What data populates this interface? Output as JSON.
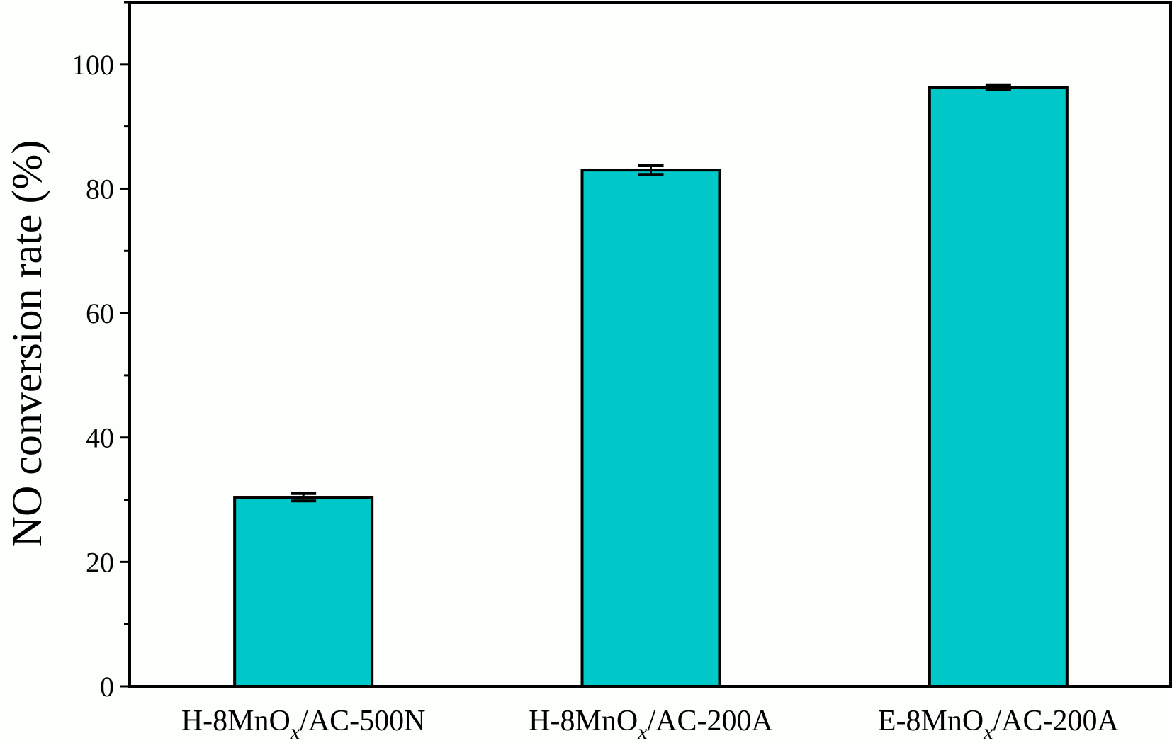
{
  "chart_data": {
    "type": "bar",
    "categories": [
      {
        "prefix": "H-8MnO",
        "sub": "x",
        "suffix": "/AC-500N"
      },
      {
        "prefix": "H-8MnO",
        "sub": "x",
        "suffix": "/AC-200A"
      },
      {
        "prefix": "E-8MnO",
        "sub": "x",
        "suffix": "/AC-200A"
      }
    ],
    "values": [
      30.4,
      83.0,
      96.3
    ],
    "errors": [
      0.6,
      0.7,
      0.4
    ],
    "xlabel": "",
    "ylabel": "NO conversion rate (%)",
    "ylim": [
      0,
      110
    ],
    "yticks": [
      0,
      20,
      40,
      60,
      80,
      100
    ],
    "minor_ytick_step": 10,
    "grid": false,
    "bar_color": "#00c8c8",
    "edge_color": "#000000"
  }
}
